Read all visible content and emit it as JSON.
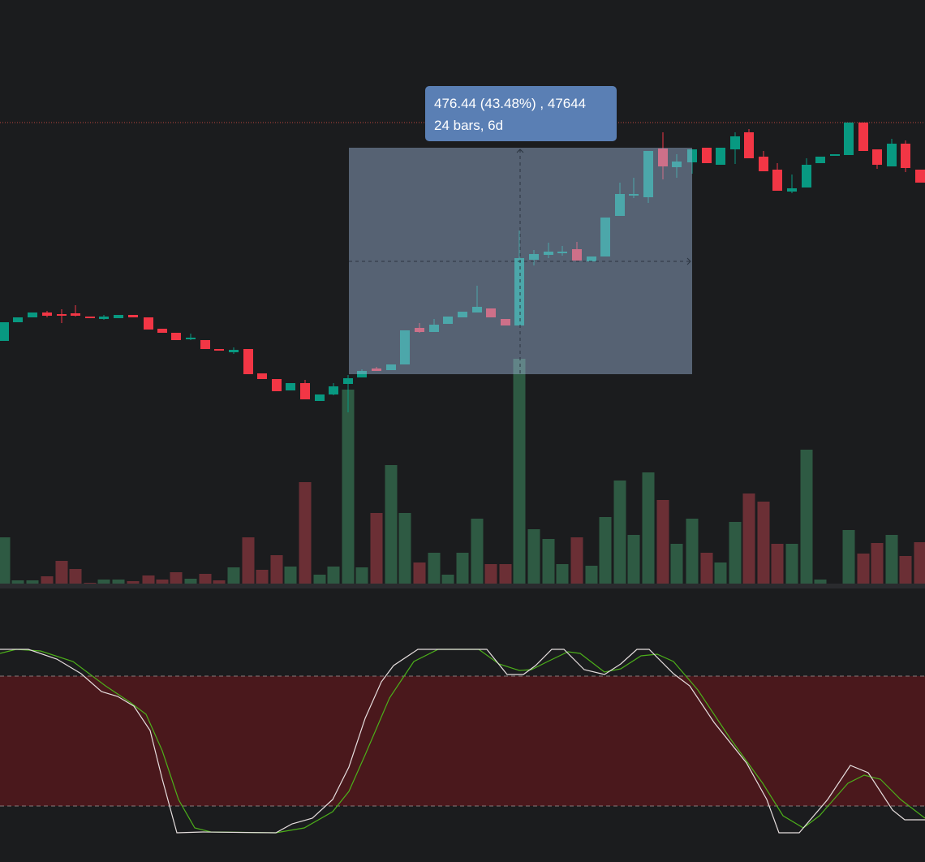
{
  "tooltip": {
    "line1": "476.44 (43.48%) , 47644",
    "line2": "24 bars, 6d"
  }
}
